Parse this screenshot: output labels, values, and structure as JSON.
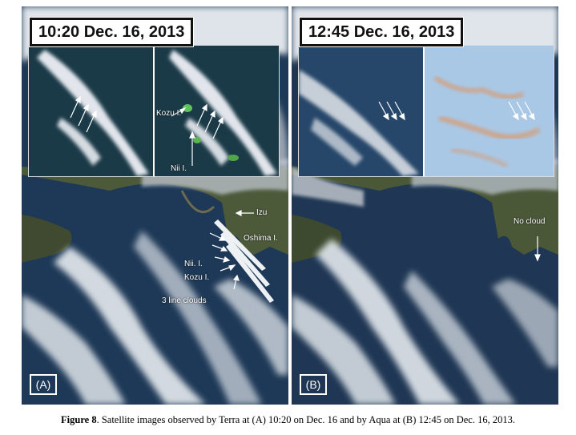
{
  "panels": {
    "a": {
      "time_label": "10:20 Dec. 16, 2013",
      "panel_label": "(A)",
      "annotations": {
        "kozu_inset": "Kozu I.",
        "nii_inset": "Nii I.",
        "izu": "Izu",
        "oshima": "Oshima I.",
        "nii": "Nii. I.",
        "kozu": "Kozu I.",
        "line_clouds": "3 line clouds"
      }
    },
    "b": {
      "time_label": "12:45 Dec. 16, 2013",
      "panel_label": "(B)",
      "annotations": {
        "no_cloud": "No cloud"
      }
    }
  },
  "caption": {
    "figure_number": "Figure 8",
    "text": ". Satellite images observed by Terra at (A) 10:20 on Dec. 16 and by Aqua at (B) 12:45 on Dec. 16, 2013."
  }
}
